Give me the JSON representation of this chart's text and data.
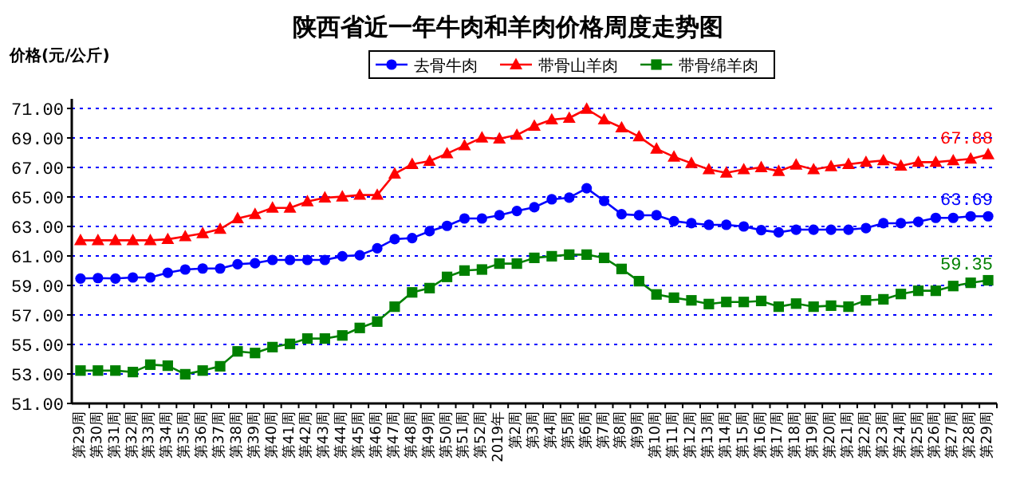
{
  "chart_data": {
    "type": "line",
    "title": "陕西省近一年牛肉和羊肉价格周度走势图",
    "ylabel": "价格(元/公斤)",
    "categories": [
      "第29周",
      "第30周",
      "第31周",
      "第32周",
      "第33周",
      "第34周",
      "第35周",
      "第36周",
      "第37周",
      "第38周",
      "第39周",
      "第40周",
      "第41周",
      "第42周",
      "第43周",
      "第44周",
      "第45周",
      "第46周",
      "第47周",
      "第48周",
      "第49周",
      "第50周",
      "第51周",
      "第52周",
      "2019年",
      "第2周",
      "第3周",
      "第4周",
      "第5周",
      "第6周",
      "第7周",
      "第8周",
      "第9周",
      "第10周",
      "第11周",
      "第12周",
      "第13周",
      "第14周",
      "第15周",
      "第16周",
      "第17周",
      "第18周",
      "第19周",
      "第20周",
      "第21周",
      "第22周",
      "第23周",
      "第24周",
      "第25周",
      "第26周",
      "第27周",
      "第28周",
      "第29周"
    ],
    "series": [
      {
        "name": "去骨牛肉",
        "color": "#0000ff",
        "marker": "circle",
        "values": [
          59.47,
          59.5,
          59.47,
          59.54,
          59.54,
          59.86,
          60.08,
          60.15,
          60.15,
          60.44,
          60.51,
          60.73,
          60.73,
          60.73,
          60.73,
          60.98,
          61.05,
          61.52,
          62.14,
          62.21,
          62.68,
          63.04,
          63.54,
          63.54,
          63.76,
          64.05,
          64.3,
          64.84,
          64.95,
          65.59,
          64.73,
          63.83,
          63.76,
          63.76,
          63.36,
          63.22,
          63.11,
          63.11,
          63.0,
          62.75,
          62.6,
          62.78,
          62.78,
          62.78,
          62.78,
          62.89,
          63.22,
          63.22,
          63.32,
          63.58,
          63.58,
          63.69,
          63.69
        ],
        "value_labels": [
          null,
          null,
          null,
          null,
          null,
          null,
          null,
          null,
          null,
          null,
          null,
          null,
          null,
          null,
          null,
          null,
          null,
          null,
          null,
          null,
          null,
          null,
          null,
          null,
          null,
          null,
          null,
          null,
          null,
          null,
          null,
          null,
          null,
          null,
          null,
          null,
          null,
          null,
          null,
          null,
          null,
          null,
          null,
          null,
          null,
          null,
          null,
          null,
          null,
          null,
          null,
          null,
          "63.69"
        ]
      },
      {
        "name": "带骨山羊肉",
        "color": "#ff0000",
        "marker": "triangle",
        "values": [
          62.06,
          62.06,
          62.06,
          62.06,
          62.06,
          62.13,
          62.32,
          62.53,
          62.82,
          63.54,
          63.83,
          64.26,
          64.26,
          64.69,
          64.95,
          65.02,
          65.13,
          65.13,
          66.57,
          67.22,
          67.43,
          67.94,
          68.48,
          69.02,
          68.95,
          69.2,
          69.81,
          70.24,
          70.35,
          70.96,
          70.24,
          69.7,
          69.09,
          68.26,
          67.72,
          67.29,
          66.86,
          66.64,
          66.86,
          67.0,
          66.75,
          67.18,
          66.86,
          67.07,
          67.22,
          67.36,
          67.47,
          67.11,
          67.36,
          67.36,
          67.47,
          67.58,
          67.88
        ],
        "value_labels": [
          null,
          null,
          null,
          null,
          null,
          null,
          null,
          null,
          null,
          null,
          null,
          null,
          null,
          null,
          null,
          null,
          null,
          null,
          null,
          null,
          null,
          null,
          null,
          null,
          null,
          null,
          null,
          null,
          null,
          null,
          null,
          null,
          null,
          null,
          null,
          null,
          null,
          null,
          null,
          null,
          null,
          null,
          null,
          null,
          null,
          null,
          null,
          null,
          null,
          null,
          null,
          null,
          "67.88"
        ]
      },
      {
        "name": "带骨绵羊肉",
        "color": "#008000",
        "marker": "square",
        "values": [
          53.23,
          53.23,
          53.23,
          53.13,
          53.63,
          53.56,
          52.98,
          53.23,
          53.52,
          54.53,
          54.42,
          54.82,
          55.04,
          55.4,
          55.4,
          55.61,
          56.12,
          56.55,
          57.56,
          58.53,
          58.82,
          59.58,
          60.01,
          60.08,
          60.48,
          60.48,
          60.87,
          60.98,
          61.09,
          61.09,
          60.87,
          60.12,
          59.29,
          58.39,
          58.17,
          57.99,
          57.74,
          57.88,
          57.88,
          57.95,
          57.56,
          57.77,
          57.56,
          57.63,
          57.56,
          57.99,
          58.06,
          58.42,
          58.64,
          58.64,
          58.96,
          59.18,
          59.35
        ],
        "value_labels": [
          null,
          null,
          null,
          null,
          null,
          null,
          null,
          null,
          null,
          null,
          null,
          null,
          null,
          null,
          null,
          null,
          null,
          null,
          null,
          null,
          null,
          null,
          null,
          null,
          null,
          null,
          null,
          null,
          null,
          null,
          null,
          null,
          null,
          null,
          null,
          null,
          null,
          null,
          null,
          null,
          null,
          null,
          null,
          null,
          null,
          null,
          null,
          null,
          null,
          null,
          null,
          null,
          "59.35"
        ]
      }
    ],
    "ylim": [
      51,
      71
    ],
    "yticks": [
      {
        "value": 51,
        "label": "51.00"
      },
      {
        "value": 53,
        "label": "53.00"
      },
      {
        "value": 55,
        "label": "55.00"
      },
      {
        "value": 57,
        "label": "57.00"
      },
      {
        "value": 59,
        "label": "59.00"
      },
      {
        "value": 61,
        "label": "61.00"
      },
      {
        "value": 63,
        "label": "63.00"
      },
      {
        "value": 65,
        "label": "65.00"
      },
      {
        "value": 67,
        "label": "67.00"
      },
      {
        "value": 69,
        "label": "69.00"
      },
      {
        "value": 71,
        "label": "71.00"
      }
    ],
    "grid": "y",
    "legend": "top"
  }
}
